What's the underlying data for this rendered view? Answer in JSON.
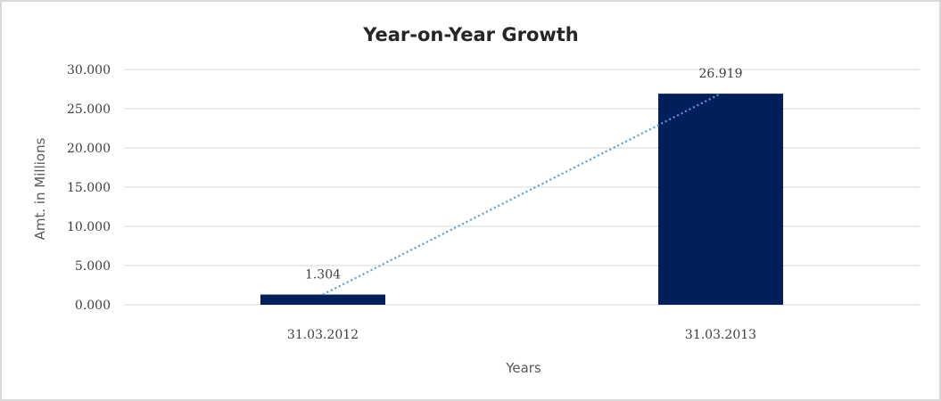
{
  "chart_data": {
    "type": "bar",
    "title": "Year-on-Year Growth",
    "xlabel": "Years",
    "ylabel": "Amt. in Millions",
    "categories": [
      "31.03.2012",
      "31.03.2013"
    ],
    "values": [
      1.304,
      26.919
    ],
    "data_labels": [
      "1.304",
      "26.919"
    ],
    "ylim": [
      0,
      30
    ],
    "yticks": [
      0,
      5,
      10,
      15,
      20,
      25,
      30
    ],
    "ytick_labels": [
      "0.000",
      "5.000",
      "10.000",
      "15.000",
      "20.000",
      "25.000",
      "30.000"
    ],
    "grid": true,
    "legend": "none",
    "trendline": {
      "type": "linear",
      "style": "dotted",
      "color": "#5b9bd5"
    },
    "bar_color": "#001f5b"
  }
}
